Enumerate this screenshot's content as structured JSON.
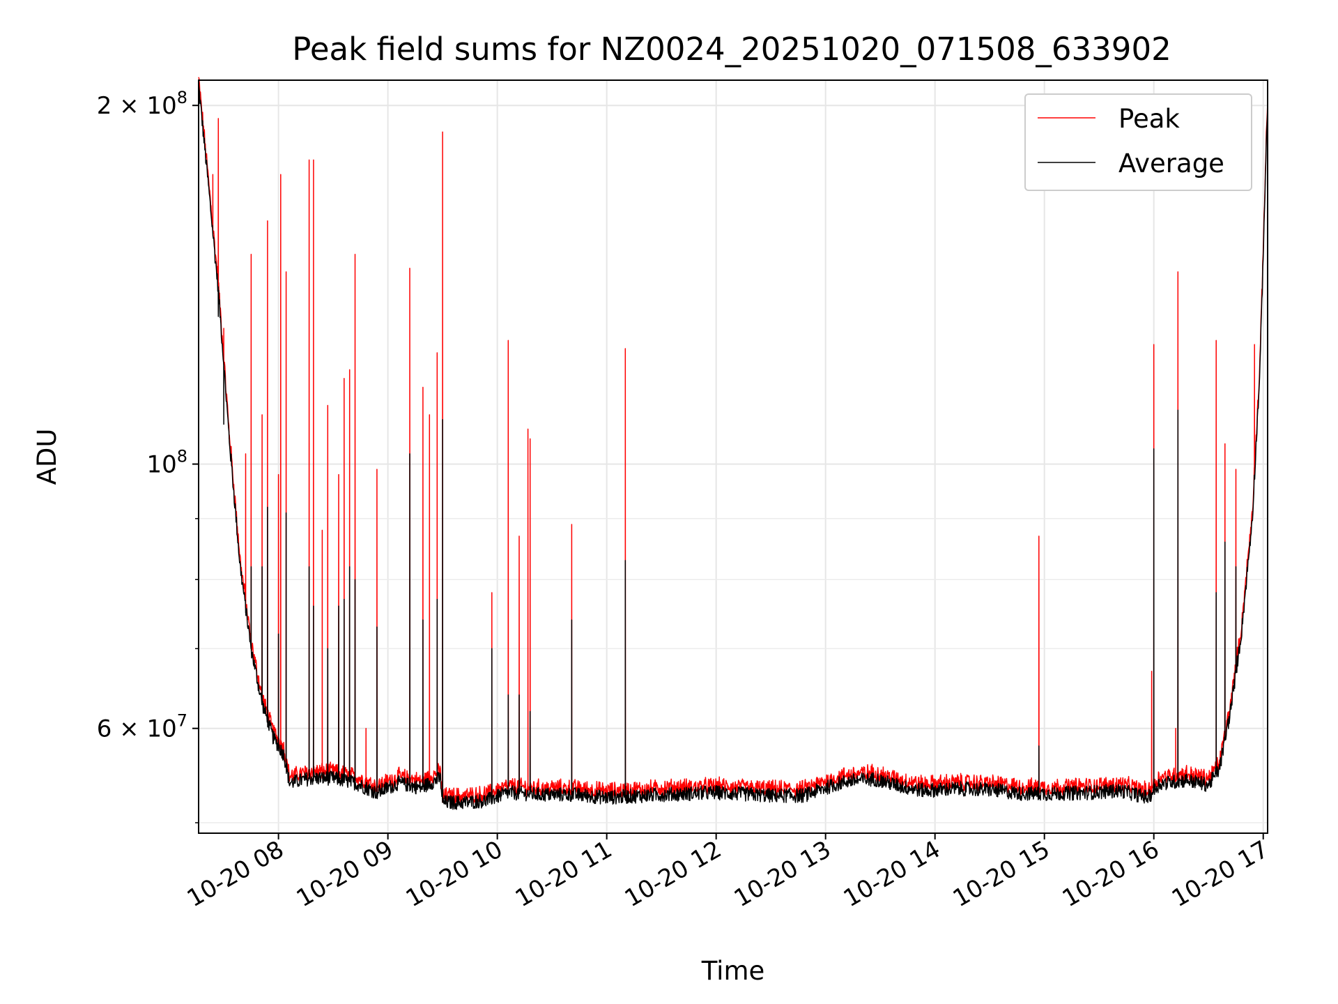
{
  "chart_data": {
    "type": "line",
    "title": "Peak field sums for NZ0024_20251020_071508_633902",
    "xlabel": "Time",
    "ylabel": "ADU",
    "y_scale": "log",
    "ylim": [
      49000000,
      210000000
    ],
    "xlim_hours": [
      7.27,
      17.04
    ],
    "grid": true,
    "legend_position": "top-right",
    "x_ticks": [
      {
        "label": "10-20 08",
        "value": 8
      },
      {
        "label": "10-20 09",
        "value": 9
      },
      {
        "label": "10-20 10",
        "value": 10
      },
      {
        "label": "10-20 11",
        "value": 11
      },
      {
        "label": "10-20 12",
        "value": 12
      },
      {
        "label": "10-20 13",
        "value": 13
      },
      {
        "label": "10-20 14",
        "value": 14
      },
      {
        "label": "10-20 15",
        "value": 15
      },
      {
        "label": "10-20 16",
        "value": 16
      },
      {
        "label": "10-20 17",
        "value": 17
      }
    ],
    "y_major_ticks": [
      {
        "value": 60000000,
        "mantissa": "6 × 10",
        "exp": "7"
      },
      {
        "value": 100000000,
        "mantissa": "10",
        "exp": "8"
      },
      {
        "value": 200000000,
        "mantissa": "2 × 10",
        "exp": "8"
      }
    ],
    "y_minor_ticks": [
      50000000,
      70000000,
      80000000,
      90000000
    ],
    "baseline": [
      [
        7.27,
        208000000
      ],
      [
        7.35,
        175000000
      ],
      [
        7.45,
        140000000
      ],
      [
        7.55,
        105000000
      ],
      [
        7.65,
        82000000
      ],
      [
        7.75,
        70000000
      ],
      [
        7.85,
        63000000
      ],
      [
        7.95,
        59000000
      ],
      [
        8.05,
        57000000
      ],
      [
        8.1,
        54000000
      ],
      [
        8.3,
        54500000
      ],
      [
        8.5,
        54500000
      ],
      [
        8.7,
        54000000
      ],
      [
        8.9,
        53000000
      ],
      [
        9.1,
        54000000
      ],
      [
        9.3,
        53500000
      ],
      [
        9.48,
        54500000
      ],
      [
        9.5,
        52000000
      ],
      [
        9.7,
        52000000
      ],
      [
        9.9,
        52200000
      ],
      [
        10.1,
        53000000
      ],
      [
        10.4,
        52800000
      ],
      [
        10.7,
        52800000
      ],
      [
        11.0,
        52500000
      ],
      [
        11.5,
        52800000
      ],
      [
        12.0,
        53000000
      ],
      [
        12.5,
        52700000
      ],
      [
        12.8,
        52700000
      ],
      [
        13.0,
        53500000
      ],
      [
        13.2,
        54200000
      ],
      [
        13.45,
        54400000
      ],
      [
        13.7,
        53600000
      ],
      [
        13.9,
        53200000
      ],
      [
        14.2,
        53400000
      ],
      [
        14.5,
        53300000
      ],
      [
        14.8,
        52900000
      ],
      [
        15.1,
        52900000
      ],
      [
        15.4,
        53000000
      ],
      [
        15.7,
        53200000
      ],
      [
        15.95,
        52500000
      ],
      [
        16.05,
        53900000
      ],
      [
        16.3,
        54300000
      ],
      [
        16.5,
        53800000
      ],
      [
        16.6,
        55500000
      ],
      [
        16.7,
        62000000
      ],
      [
        16.8,
        72000000
      ],
      [
        16.9,
        90000000
      ],
      [
        16.97,
        120000000
      ],
      [
        17.02,
        175000000
      ],
      [
        17.04,
        200000000
      ]
    ],
    "series": [
      {
        "name": "Peak",
        "color": "#ff0000",
        "spikes": [
          [
            7.4,
            175000000
          ],
          [
            7.45,
            195000000
          ],
          [
            7.5,
            130000000
          ],
          [
            7.55,
            105000000
          ],
          [
            7.7,
            102000000
          ],
          [
            7.75,
            150000000
          ],
          [
            7.85,
            110000000
          ],
          [
            7.9,
            160000000
          ],
          [
            8.0,
            98000000
          ],
          [
            8.02,
            175000000
          ],
          [
            8.07,
            145000000
          ],
          [
            8.28,
            180000000
          ],
          [
            8.32,
            180000000
          ],
          [
            8.4,
            88000000
          ],
          [
            8.45,
            112000000
          ],
          [
            8.55,
            98000000
          ],
          [
            8.6,
            118000000
          ],
          [
            8.65,
            120000000
          ],
          [
            8.7,
            150000000
          ],
          [
            8.8,
            60000000
          ],
          [
            8.9,
            99000000
          ],
          [
            9.2,
            146000000
          ],
          [
            9.32,
            116000000
          ],
          [
            9.38,
            110000000
          ],
          [
            9.45,
            124000000
          ],
          [
            9.5,
            190000000
          ],
          [
            9.95,
            78000000
          ],
          [
            10.1,
            127000000
          ],
          [
            10.2,
            87000000
          ],
          [
            10.28,
            107000000
          ],
          [
            10.3,
            105000000
          ],
          [
            10.68,
            89000000
          ],
          [
            11.17,
            125000000
          ],
          [
            14.95,
            87000000
          ],
          [
            15.98,
            67000000
          ],
          [
            16.0,
            126000000
          ],
          [
            16.2,
            60000000
          ],
          [
            16.22,
            145000000
          ],
          [
            16.57,
            127000000
          ],
          [
            16.65,
            104000000
          ],
          [
            16.75,
            99000000
          ],
          [
            16.92,
            126000000
          ]
        ]
      },
      {
        "name": "Average",
        "color": "#000000",
        "spikes": [
          [
            7.45,
            133000000
          ],
          [
            7.5,
            108000000
          ],
          [
            7.7,
            75000000
          ],
          [
            7.75,
            82000000
          ],
          [
            7.85,
            82000000
          ],
          [
            7.9,
            92000000
          ],
          [
            8.0,
            72000000
          ],
          [
            8.07,
            91000000
          ],
          [
            8.28,
            82000000
          ],
          [
            8.32,
            76000000
          ],
          [
            8.45,
            70000000
          ],
          [
            8.55,
            76000000
          ],
          [
            8.6,
            77000000
          ],
          [
            8.65,
            82000000
          ],
          [
            8.7,
            80000000
          ],
          [
            8.9,
            73000000
          ],
          [
            9.2,
            102000000
          ],
          [
            9.32,
            74000000
          ],
          [
            9.45,
            77000000
          ],
          [
            9.5,
            109000000
          ],
          [
            9.95,
            70000000
          ],
          [
            10.1,
            64000000
          ],
          [
            10.2,
            64000000
          ],
          [
            10.3,
            62000000
          ],
          [
            10.68,
            74000000
          ],
          [
            11.17,
            83000000
          ],
          [
            14.95,
            58000000
          ],
          [
            16.0,
            103000000
          ],
          [
            16.22,
            111000000
          ],
          [
            16.57,
            78000000
          ],
          [
            16.65,
            86000000
          ],
          [
            16.75,
            82000000
          ]
        ]
      }
    ]
  }
}
